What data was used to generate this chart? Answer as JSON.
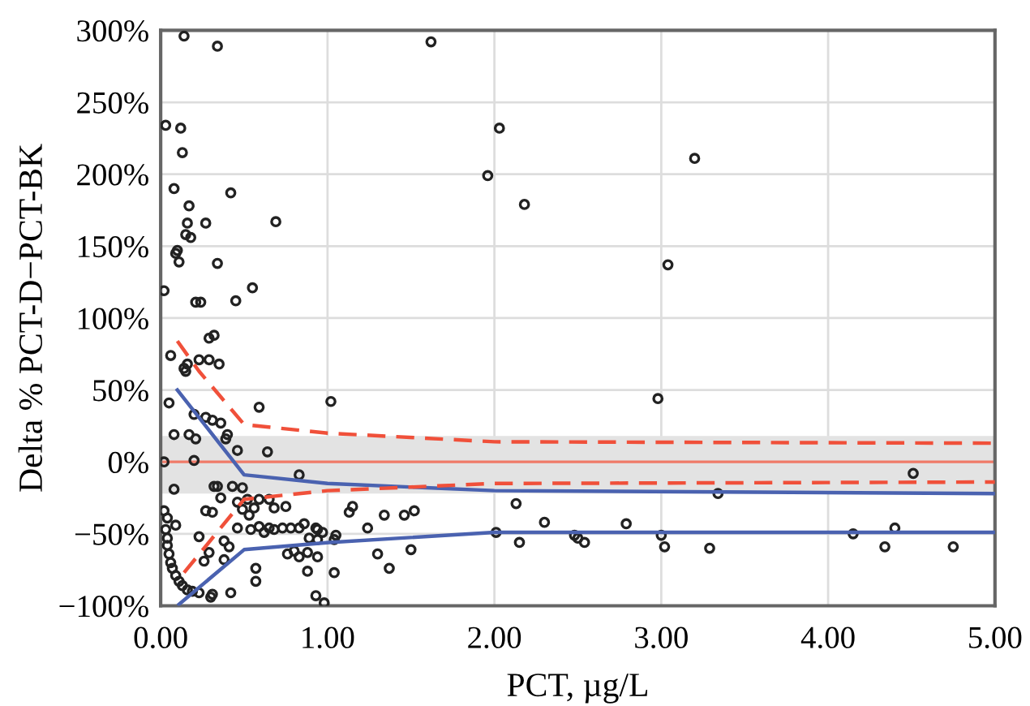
{
  "chart_data": {
    "type": "scatter",
    "xlabel": "PCT, µg/L",
    "ylabel": "Delta % PCT-D−PCT-BK",
    "xlim": [
      0,
      5
    ],
    "ylim": [
      -100,
      300
    ],
    "xticks": [
      {
        "value": 0,
        "label": "0.00"
      },
      {
        "value": 1,
        "label": "1.00"
      },
      {
        "value": 2,
        "label": "2.00"
      },
      {
        "value": 3,
        "label": "3.00"
      },
      {
        "value": 4,
        "label": "4.00"
      },
      {
        "value": 5,
        "label": "5.00"
      }
    ],
    "yticks": [
      {
        "value": -100,
        "label": "−100%"
      },
      {
        "value": -50,
        "label": "−50%"
      },
      {
        "value": 0,
        "label": "0%"
      },
      {
        "value": 50,
        "label": "50%"
      },
      {
        "value": 100,
        "label": "100%"
      },
      {
        "value": 150,
        "label": "150%"
      },
      {
        "value": 200,
        "label": "200%"
      },
      {
        "value": 250,
        "label": "250%"
      },
      {
        "value": 300,
        "label": "300%"
      }
    ],
    "grid": true,
    "bands": [
      {
        "axis": "y",
        "from": -22,
        "to": 18,
        "color": "#e3e3e3"
      }
    ],
    "ref_lines": [
      {
        "axis": "y",
        "value": 0,
        "color": "#f07a68",
        "line_style": "solid"
      }
    ],
    "series": [
      {
        "marker": "circle",
        "color": "#222222",
        "x": [
          0.14,
          0.34,
          0.03,
          0.12,
          0.13,
          0.08,
          0.42,
          0.17,
          0.16,
          0.27,
          0.69,
          0.15,
          0.18,
          0.1,
          0.09,
          0.11,
          0.34,
          0.02,
          0.55,
          0.21,
          0.24,
          0.45,
          1.62,
          2.03,
          1.96,
          2.18,
          3.2,
          3.04,
          2.98,
          4.51,
          3.34,
          2.13,
          2.3,
          2.79,
          2.01,
          2.15,
          2.48,
          2.5,
          2.54,
          3.0,
          3.02,
          3.29,
          4.15,
          4.4,
          4.34,
          4.75,
          0.29,
          0.32,
          0.06,
          0.23,
          0.16,
          0.14,
          0.15,
          0.29,
          0.35,
          0.05,
          0.2,
          0.27,
          0.31,
          0.36,
          0.59,
          1.02,
          0.08,
          0.17,
          0.21,
          0.4,
          0.39,
          0.46,
          0.64,
          0.02,
          0.2,
          0.83,
          0.08,
          0.32,
          0.34,
          0.43,
          0.49,
          0.36,
          0.46,
          0.52,
          0.59,
          0.65,
          0.68,
          0.75,
          0.49,
          0.53,
          0.56,
          0.27,
          0.31,
          0.02,
          0.04,
          0.09,
          0.23,
          0.38,
          0.46,
          0.54,
          0.59,
          0.62,
          0.65,
          0.68,
          0.73,
          0.78,
          0.83,
          0.86,
          0.93,
          0.94,
          0.97,
          0.89,
          0.94,
          1.04,
          1.05,
          1.13,
          1.15,
          1.24,
          1.34,
          1.46,
          1.52,
          1.3,
          1.37,
          1.5,
          0.76,
          0.8,
          0.83,
          0.88,
          0.94,
          0.57,
          0.57,
          0.88,
          1.04,
          0.93,
          0.98,
          0.41,
          0.38,
          0.29,
          0.26,
          0.31,
          0.3,
          0.42,
          0.03,
          0.04,
          0.04,
          0.05,
          0.06,
          0.07,
          0.09,
          0.11,
          0.13,
          0.16,
          0.19,
          0.23
        ],
        "values": [
          296,
          289,
          234,
          232,
          215,
          190,
          187,
          178,
          166,
          166,
          167,
          158,
          156,
          147,
          145,
          139,
          138,
          119,
          121,
          111,
          111,
          112,
          292,
          232,
          199,
          179,
          211,
          137,
          44,
          -8,
          -22,
          -29,
          -42,
          -43,
          -49,
          -56,
          -51,
          -53,
          -56,
          -51,
          -59,
          -60,
          -50,
          -46,
          -59,
          -59,
          86,
          88,
          74,
          71,
          68,
          65,
          63,
          71,
          68,
          41,
          33,
          31,
          29,
          27,
          38,
          42,
          19,
          19,
          16,
          19,
          16,
          8,
          7,
          0,
          1,
          -9,
          -19,
          -17,
          -17,
          -17,
          -18,
          -25,
          -28,
          -26,
          -26,
          -26,
          -32,
          -31,
          -33,
          -37,
          -32,
          -34,
          -35,
          -34,
          -39,
          -44,
          -52,
          -55,
          -46,
          -47,
          -45,
          -49,
          -46,
          -47,
          -46,
          -46,
          -46,
          -43,
          -46,
          -47,
          -49,
          -53,
          -54,
          -54,
          -51,
          -35,
          -31,
          -46,
          -37,
          -37,
          -34,
          -64,
          -74,
          -61,
          -64,
          -62,
          -66,
          -63,
          -66,
          -74,
          -83,
          -76,
          -77,
          -93,
          -98,
          -59,
          -68,
          -63,
          -69,
          -92,
          -94,
          -91,
          -47,
          -53,
          -58,
          -64,
          -70,
          -74,
          -79,
          -83,
          -86,
          -89,
          -90,
          -91
        ]
      },
      {
        "type": "line",
        "color": "#4a62b0",
        "line_style": "solid",
        "x": [
          0.1,
          0.5,
          1.0,
          2.0,
          5.0
        ],
        "values": [
          50,
          -9,
          -15,
          -20,
          -22
        ]
      },
      {
        "type": "line",
        "color": "#4a62b0",
        "line_style": "solid",
        "x": [
          0.11,
          0.5,
          1.01,
          2.0,
          5.0
        ],
        "values": [
          -99,
          -61,
          -56,
          -49,
          -49
        ]
      },
      {
        "type": "line",
        "color": "#f0503a",
        "line_style": "dashed",
        "x": [
          0.1,
          0.23,
          0.5,
          1.0,
          2.0,
          5.0
        ],
        "values": [
          84,
          63,
          26,
          20,
          14,
          13
        ]
      },
      {
        "type": "line",
        "color": "#f0503a",
        "line_style": "dashed",
        "x": [
          0.14,
          0.5,
          1.0,
          2.0,
          5.0
        ],
        "values": [
          -77,
          -26,
          -20,
          -15,
          -14
        ]
      }
    ]
  }
}
